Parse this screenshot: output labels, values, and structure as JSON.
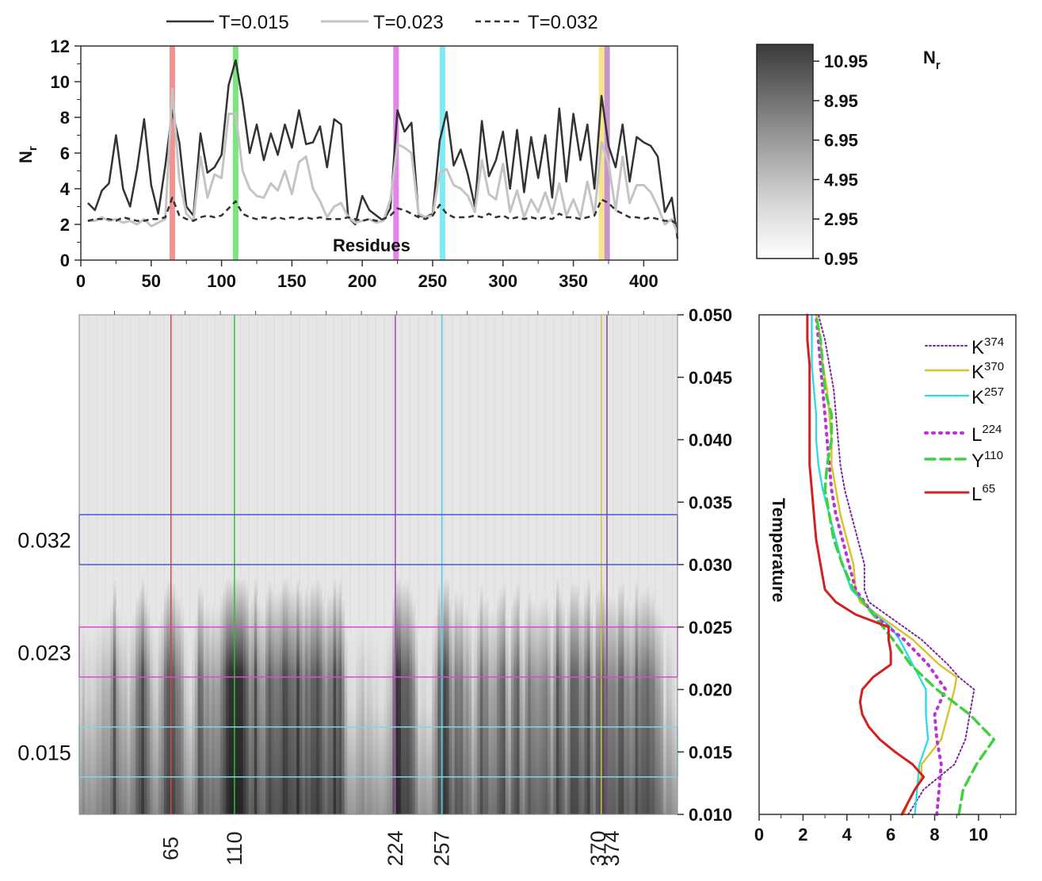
{
  "chart_data": [
    {
      "type": "line",
      "id": "top",
      "xlabel": "Residues",
      "ylabel": "N",
      "ylabel_sub": "r",
      "xlim": [
        0,
        424
      ],
      "ylim": [
        0,
        12
      ],
      "xticks": [
        0,
        50,
        100,
        150,
        200,
        250,
        300,
        350,
        400
      ],
      "yticks": [
        0,
        2,
        4,
        6,
        8,
        10,
        12
      ],
      "legend": [
        "T=0.015",
        "T=0.023",
        "T=0.032"
      ],
      "highlighted_residues": [
        65,
        110,
        224,
        257,
        370,
        374
      ],
      "highlight_colors": [
        "#f08080",
        "#66e066",
        "#e070e8",
        "#66e8f0",
        "#f2e07a",
        "#c080c8"
      ],
      "series": [
        {
          "name": "T=0.015",
          "x": [
            5,
            10,
            15,
            20,
            25,
            30,
            35,
            40,
            45,
            50,
            55,
            60,
            65,
            70,
            75,
            80,
            85,
            90,
            95,
            100,
            105,
            110,
            115,
            120,
            125,
            130,
            135,
            140,
            145,
            150,
            155,
            160,
            165,
            170,
            175,
            180,
            185,
            190,
            195,
            200,
            205,
            210,
            215,
            220,
            225,
            230,
            235,
            240,
            245,
            250,
            255,
            260,
            265,
            270,
            275,
            280,
            285,
            290,
            295,
            300,
            305,
            310,
            315,
            320,
            325,
            330,
            335,
            340,
            345,
            350,
            355,
            360,
            365,
            370,
            375,
            380,
            385,
            390,
            395,
            400,
            405,
            410,
            415,
            420,
            424
          ],
          "values": [
            3.2,
            2.8,
            3.9,
            4.3,
            7.0,
            4.0,
            3.0,
            5.1,
            7.9,
            4.2,
            2.6,
            5.3,
            8.4,
            6.6,
            3.0,
            2.5,
            7.1,
            4.9,
            5.2,
            5.9,
            9.8,
            11.2,
            8.9,
            6.0,
            7.6,
            5.6,
            7.1,
            5.9,
            7.6,
            6.3,
            8.4,
            6.5,
            6.6,
            7.5,
            5.2,
            7.9,
            7.6,
            2.4,
            2.0,
            3.6,
            2.8,
            2.5,
            2.2,
            2.9,
            8.4,
            7.2,
            7.7,
            2.5,
            2.4,
            2.6,
            6.7,
            8.3,
            5.3,
            6.2,
            4.8,
            3.0,
            7.8,
            4.7,
            5.6,
            7.2,
            4.0,
            7.3,
            3.8,
            6.9,
            4.6,
            7.0,
            3.5,
            8.5,
            4.4,
            8.2,
            5.6,
            7.6,
            4.0,
            9.2,
            6.4,
            5.2,
            7.6,
            4.4,
            6.9,
            6.6,
            6.4,
            5.8,
            2.7,
            3.5,
            1.2
          ]
        },
        {
          "name": "T=0.023",
          "x": [
            5,
            10,
            15,
            20,
            25,
            30,
            35,
            40,
            45,
            50,
            55,
            60,
            65,
            70,
            75,
            80,
            85,
            90,
            95,
            100,
            105,
            110,
            115,
            120,
            125,
            130,
            135,
            140,
            145,
            150,
            155,
            160,
            165,
            170,
            175,
            180,
            185,
            190,
            195,
            200,
            205,
            210,
            215,
            220,
            225,
            230,
            235,
            240,
            245,
            250,
            255,
            260,
            265,
            270,
            275,
            280,
            285,
            290,
            295,
            300,
            305,
            310,
            315,
            320,
            325,
            330,
            335,
            340,
            345,
            350,
            355,
            360,
            365,
            370,
            375,
            380,
            385,
            390,
            395,
            400,
            405,
            410,
            415,
            420,
            424
          ],
          "values": [
            2.2,
            2.2,
            2.4,
            2.2,
            2.3,
            2.1,
            2.2,
            2.0,
            2.3,
            1.9,
            2.1,
            2.3,
            9.6,
            4.5,
            2.6,
            2.2,
            5.8,
            3.5,
            4.8,
            4.6,
            8.2,
            8.2,
            5.0,
            4.0,
            3.6,
            3.5,
            4.3,
            3.9,
            5.0,
            3.7,
            5.5,
            5.8,
            4.0,
            3.3,
            2.4,
            3.0,
            3.2,
            2.4,
            2.1,
            2.2,
            2.3,
            2.1,
            2.2,
            3.4,
            6.5,
            6.3,
            6.0,
            2.6,
            2.4,
            2.5,
            4.9,
            5.1,
            4.2,
            4.0,
            3.6,
            2.7,
            5.6,
            3.7,
            3.4,
            5.4,
            2.7,
            3.9,
            2.4,
            3.4,
            2.7,
            3.8,
            2.6,
            4.3,
            2.5,
            3.4,
            2.4,
            4.4,
            2.5,
            6.6,
            5.4,
            2.8,
            5.8,
            3.2,
            4.2,
            4.2,
            3.8,
            3.0,
            2.0,
            2.3,
            1.5
          ]
        },
        {
          "name": "T=0.032",
          "x": [
            5,
            10,
            15,
            20,
            25,
            30,
            35,
            40,
            45,
            50,
            55,
            60,
            65,
            70,
            75,
            80,
            85,
            90,
            95,
            100,
            105,
            110,
            115,
            120,
            125,
            130,
            135,
            140,
            145,
            150,
            155,
            160,
            165,
            170,
            175,
            180,
            185,
            190,
            195,
            200,
            205,
            210,
            215,
            220,
            225,
            230,
            235,
            240,
            245,
            250,
            255,
            260,
            265,
            270,
            275,
            280,
            285,
            290,
            295,
            300,
            305,
            310,
            315,
            320,
            325,
            330,
            335,
            340,
            345,
            350,
            355,
            360,
            365,
            370,
            375,
            380,
            385,
            390,
            395,
            400,
            405,
            410,
            415,
            420,
            424
          ],
          "values": [
            2.2,
            2.3,
            2.3,
            2.3,
            2.2,
            2.4,
            2.3,
            2.2,
            2.2,
            2.3,
            2.3,
            2.4,
            3.5,
            2.5,
            2.3,
            2.2,
            2.4,
            2.5,
            2.4,
            2.5,
            2.9,
            3.3,
            2.6,
            2.4,
            2.3,
            2.4,
            2.3,
            2.4,
            2.3,
            2.4,
            2.3,
            2.4,
            2.3,
            2.4,
            2.3,
            2.3,
            2.3,
            2.4,
            2.3,
            2.2,
            2.3,
            2.2,
            2.3,
            2.5,
            2.9,
            2.8,
            2.6,
            2.4,
            2.3,
            2.5,
            3.1,
            2.6,
            2.4,
            2.4,
            2.4,
            2.5,
            2.4,
            2.6,
            2.4,
            2.5,
            2.3,
            2.4,
            2.3,
            2.4,
            2.3,
            2.4,
            2.3,
            2.6,
            2.4,
            2.4,
            2.3,
            2.4,
            2.5,
            3.4,
            3.2,
            2.8,
            2.6,
            2.4,
            2.4,
            2.3,
            2.4,
            2.3,
            2.2,
            2.2,
            2.0
          ]
        }
      ]
    },
    {
      "type": "heatmap",
      "id": "map",
      "title": "N",
      "title_sub": "r",
      "colorbar_ticks": [
        10.95,
        8.95,
        6.95,
        4.95,
        2.95,
        0.95
      ],
      "colorbar_range": [
        0.95,
        11.8
      ],
      "x_range": [
        0,
        424
      ],
      "y_range": [
        0.01,
        0.05
      ],
      "y_ticks": [
        0.01,
        0.015,
        0.02,
        0.025,
        0.03,
        0.035,
        0.04,
        0.045,
        0.05
      ],
      "y_label": "Temperature",
      "residue_labels": [
        "65",
        "110",
        "224",
        "257",
        "370",
        "374"
      ],
      "residue_positions": [
        65,
        110,
        224,
        257,
        370,
        374
      ],
      "residue_colors": [
        "#d44a3a",
        "#2fbf2f",
        "#b040c0",
        "#40d0e0",
        "#d8c040",
        "#7a4a8a"
      ],
      "band_labels": [
        "0.032",
        "0.023",
        "0.015"
      ],
      "bands": [
        {
          "label": "0.032",
          "lo": 0.03,
          "hi": 0.034,
          "color": "#4a56d8"
        },
        {
          "label": "0.023",
          "lo": 0.021,
          "hi": 0.025,
          "color": "#d84ad8"
        },
        {
          "label": "0.015",
          "lo": 0.013,
          "hi": 0.017,
          "color": "#7ad8e8"
        }
      ]
    },
    {
      "type": "line",
      "id": "side",
      "ylabel": "Temperature",
      "xlim": [
        0,
        11.7
      ],
      "ylim": [
        0.01,
        0.05
      ],
      "xticks": [
        0,
        2,
        4,
        6,
        8,
        10
      ],
      "yticks": [
        0.01,
        0.015,
        0.02,
        0.025,
        0.03,
        0.035,
        0.04,
        0.045,
        0.05
      ],
      "legend_names": [
        "K",
        "K",
        "K",
        "L",
        "Y",
        "L"
      ],
      "legend_sups": [
        "374",
        "370",
        "257",
        "224",
        "110",
        "65"
      ],
      "series": [
        {
          "name": "K374",
          "color": "#7a2a9a",
          "dash": "2,3",
          "width": 2,
          "t": [
            0.01,
            0.012,
            0.014,
            0.016,
            0.018,
            0.02,
            0.021,
            0.022,
            0.024,
            0.026,
            0.027,
            0.028,
            0.03,
            0.032,
            0.034,
            0.036,
            0.038,
            0.04,
            0.042,
            0.044,
            0.046,
            0.048,
            0.05
          ],
          "v": [
            6.8,
            7.5,
            8.9,
            9.4,
            9.6,
            9.8,
            9.1,
            8.6,
            7.4,
            5.8,
            5.0,
            4.8,
            4.8,
            4.5,
            4.2,
            3.9,
            3.7,
            3.6,
            3.5,
            3.4,
            3.2,
            3.0,
            2.7
          ]
        },
        {
          "name": "K370",
          "color": "#d8c430",
          "dash": "",
          "width": 2.5,
          "t": [
            0.01,
            0.011,
            0.012,
            0.013,
            0.014,
            0.016,
            0.018,
            0.02,
            0.021,
            0.022,
            0.024,
            0.026,
            0.027,
            0.028,
            0.03,
            0.032,
            0.034,
            0.036,
            0.038,
            0.04,
            0.042,
            0.044,
            0.046,
            0.048,
            0.05
          ],
          "v": [
            6.6,
            6.8,
            7.1,
            7.4,
            7.4,
            8.3,
            8.6,
            8.9,
            9.0,
            8.2,
            7.0,
            5.4,
            4.6,
            4.4,
            4.3,
            4.0,
            3.7,
            3.5,
            3.3,
            3.3,
            3.2,
            3.1,
            2.9,
            2.8,
            2.6
          ]
        },
        {
          "name": "K257",
          "color": "#30d8e8",
          "dash": "2,2",
          "width": 2.5,
          "t": [
            0.01,
            0.012,
            0.014,
            0.016,
            0.018,
            0.02,
            0.022,
            0.024,
            0.025,
            0.026,
            0.028,
            0.03,
            0.032,
            0.034,
            0.036,
            0.038,
            0.04,
            0.042,
            0.044,
            0.046,
            0.048,
            0.05
          ],
          "v": [
            7.1,
            7.2,
            7.3,
            7.7,
            7.6,
            7.6,
            7.0,
            6.4,
            6.0,
            5.3,
            4.2,
            3.8,
            3.5,
            3.2,
            2.9,
            2.7,
            2.6,
            2.6,
            2.5,
            2.4,
            2.4,
            2.4
          ]
        },
        {
          "name": "L224",
          "color": "#c030d8",
          "dash": "2,7",
          "width": 4,
          "t": [
            0.01,
            0.012,
            0.014,
            0.016,
            0.018,
            0.02,
            0.022,
            0.024,
            0.026,
            0.028,
            0.03,
            0.032,
            0.034,
            0.036,
            0.038,
            0.04,
            0.042,
            0.044,
            0.046,
            0.048,
            0.05
          ],
          "v": [
            8.1,
            8.2,
            8.3,
            8.1,
            8.0,
            8.5,
            7.7,
            6.6,
            5.2,
            4.4,
            4.1,
            3.8,
            3.5,
            3.3,
            3.2,
            3.1,
            3.0,
            2.9,
            2.8,
            2.7,
            2.6
          ]
        },
        {
          "name": "Y110",
          "color": "#40d040",
          "dash": "12,7",
          "width": 3.5,
          "t": [
            0.01,
            0.012,
            0.014,
            0.016,
            0.018,
            0.02,
            0.022,
            0.024,
            0.026,
            0.028,
            0.03,
            0.032,
            0.034,
            0.036,
            0.038,
            0.04,
            0.042,
            0.044,
            0.046,
            0.048,
            0.05
          ],
          "v": [
            9.1,
            9.3,
            9.9,
            10.7,
            9.6,
            8.1,
            6.9,
            6.1,
            5.2,
            4.3,
            3.8,
            3.4,
            3.2,
            3.0,
            3.1,
            3.3,
            3.3,
            3.0,
            2.9,
            2.8,
            2.6
          ]
        },
        {
          "name": "L65",
          "color": "#d42020",
          "dash": "",
          "width": 3,
          "t": [
            0.01,
            0.012,
            0.013,
            0.014,
            0.015,
            0.016,
            0.017,
            0.018,
            0.019,
            0.02,
            0.021,
            0.022,
            0.023,
            0.024,
            0.025,
            0.026,
            0.027,
            0.028,
            0.03,
            0.032,
            0.034,
            0.036,
            0.038,
            0.04,
            0.042,
            0.044,
            0.046,
            0.048,
            0.05
          ],
          "v": [
            6.5,
            7.1,
            7.5,
            7.0,
            6.2,
            5.5,
            5.0,
            4.7,
            4.6,
            4.7,
            5.2,
            6.0,
            6.0,
            5.9,
            5.9,
            4.4,
            3.5,
            3.0,
            2.8,
            2.6,
            2.5,
            2.4,
            2.3,
            2.3,
            2.3,
            2.3,
            2.3,
            2.2,
            2.2
          ]
        }
      ]
    }
  ],
  "legend_labels": {
    "a": "T=0.015",
    "b": "T=0.023",
    "c": "T=0.032"
  },
  "axis_labels": {
    "residues": "Residues",
    "temperature": "Temperature"
  },
  "colors": {
    "dark": "#333333",
    "grey": "#c8c8c8"
  }
}
